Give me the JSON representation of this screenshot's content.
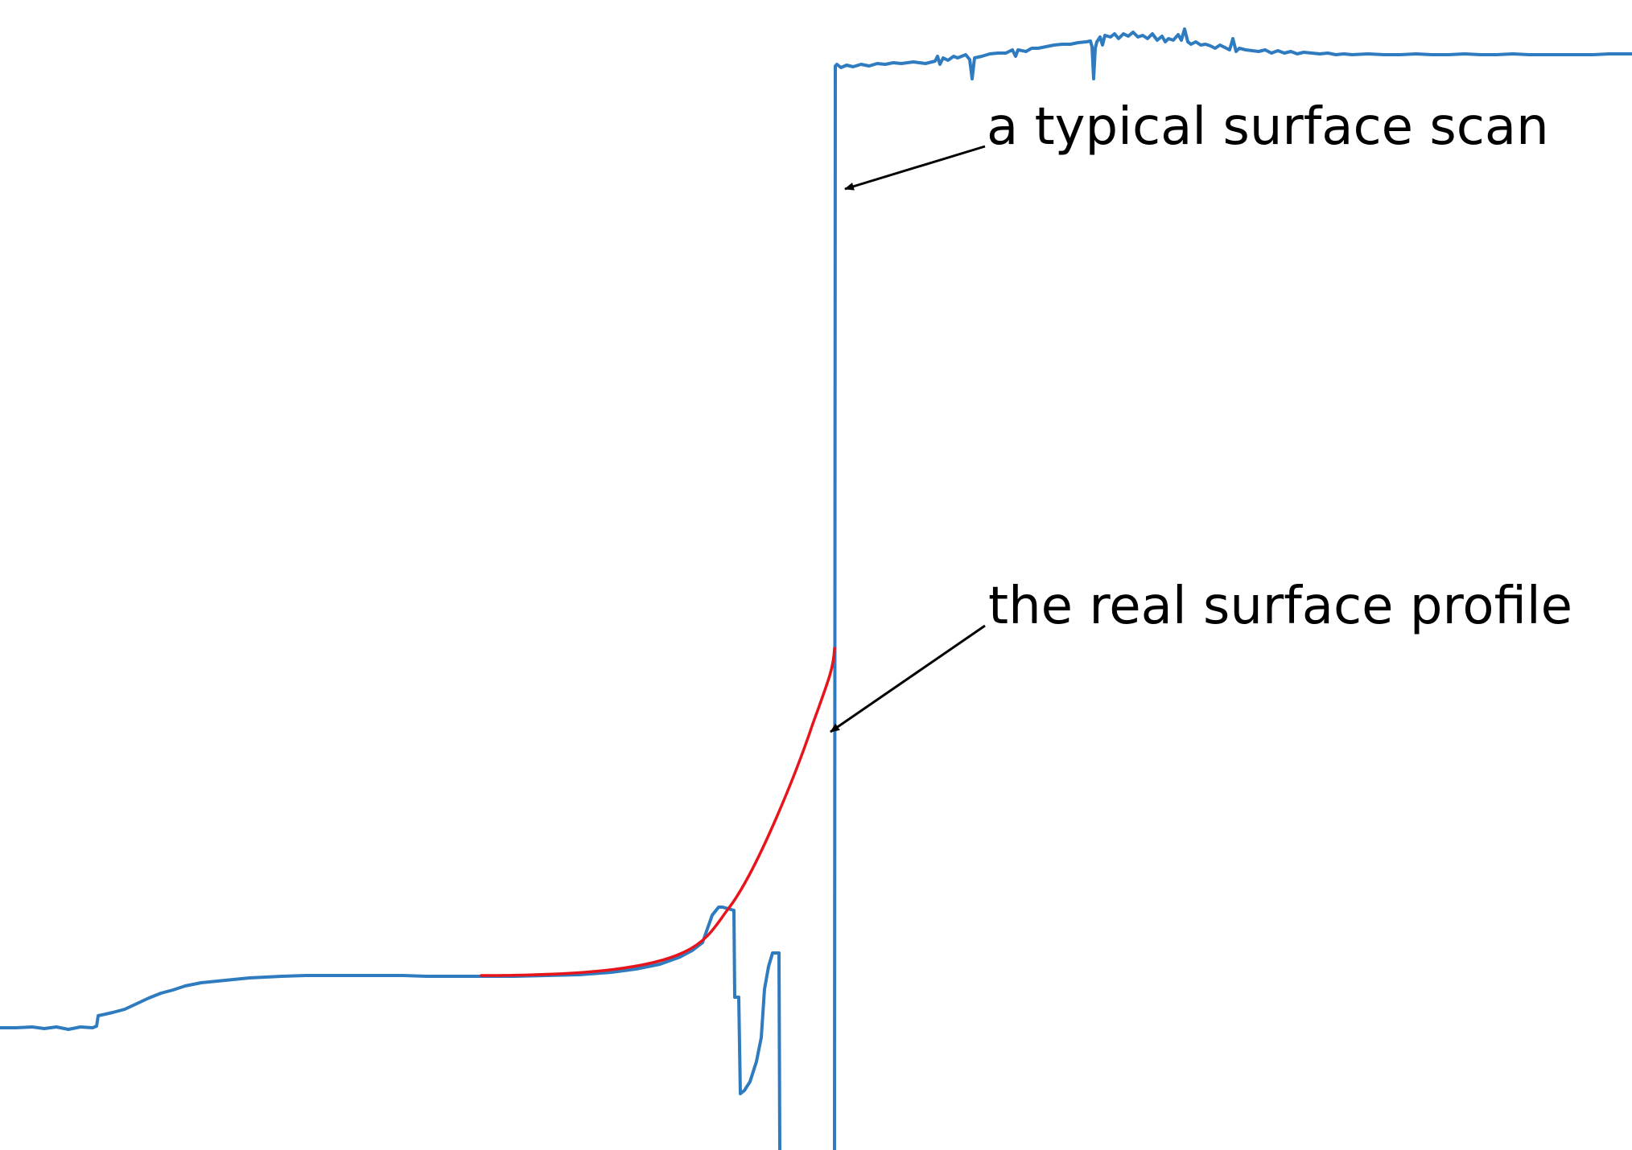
{
  "annotations": {
    "scan_label": "a typical surface scan",
    "profile_label": "the real surface profile"
  },
  "colors": {
    "scan_line": "#2f7bbf",
    "profile_line": "#e8141c",
    "arrow": "#000000",
    "background": "#ffffff"
  }
}
